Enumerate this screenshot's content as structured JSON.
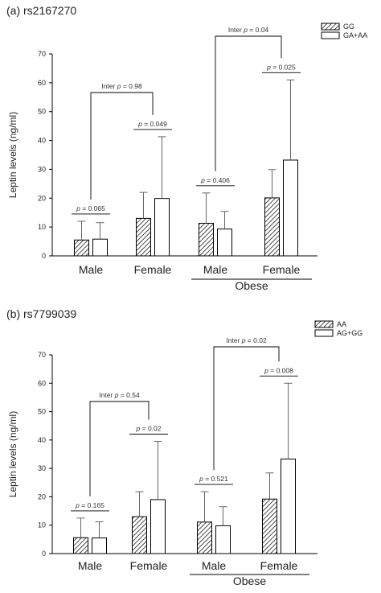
{
  "colors": {
    "bar_outline": "#000000",
    "hatched_fill": "hatch",
    "open_fill": "#ffffff",
    "error_bar": "#555555"
  },
  "chart_data": [
    {
      "type": "bar",
      "panel_title": "(a) rs2167270",
      "ylabel": "Leptin levels (ng/ml)",
      "xlabel": "",
      "ylim": [
        0,
        70
      ],
      "yticks": [
        0,
        10,
        20,
        30,
        40,
        50,
        60,
        70
      ],
      "categories": [
        "Male",
        "Female",
        "Male",
        "Female"
      ],
      "group_label": "Obese",
      "group_covers": [
        2,
        3
      ],
      "series": [
        {
          "name": "GG",
          "fill": "hatched",
          "values": [
            5.5,
            13,
            11.3,
            20.1
          ],
          "errors": [
            6.5,
            9,
            10.5,
            9.8
          ]
        },
        {
          "name": "GA+AA",
          "fill": "open",
          "values": [
            5.8,
            19.9,
            9.3,
            33.2
          ],
          "errors": [
            5.7,
            21.4,
            6.1,
            27.8
          ]
        }
      ],
      "pair_pvalues": [
        "0.065",
        "0.049",
        "0.406",
        "0.025"
      ],
      "inter_pvalues": [
        {
          "text": "0.98",
          "from": 0,
          "to": 1
        },
        {
          "text": "0.04",
          "from": 2,
          "to": 3
        }
      ],
      "legend_position": "top-right"
    },
    {
      "type": "bar",
      "panel_title": "(b) rs7799039",
      "ylabel": "Leptin levels (ng/ml)",
      "xlabel": "",
      "ylim": [
        0,
        70
      ],
      "yticks": [
        0,
        10,
        20,
        30,
        40,
        50,
        60,
        70
      ],
      "categories": [
        "Male",
        "Female",
        "Male",
        "Female"
      ],
      "group_label": "Obese",
      "group_covers": [
        2,
        3
      ],
      "series": [
        {
          "name": "AA",
          "fill": "hatched",
          "values": [
            5.6,
            13,
            11.1,
            19.2
          ],
          "errors": [
            6.9,
            8.8,
            10.7,
            9.2
          ]
        },
        {
          "name": "AG+GG",
          "fill": "open",
          "values": [
            5.5,
            19,
            9.8,
            33.3
          ],
          "errors": [
            5.7,
            20.5,
            6.7,
            26.7
          ]
        }
      ],
      "pair_pvalues": [
        "0.165",
        "0.02",
        "0.521",
        "0.008"
      ],
      "inter_pvalues": [
        {
          "text": "0.54",
          "from": 0,
          "to": 1
        },
        {
          "text": "0.02",
          "from": 2,
          "to": 3
        }
      ],
      "legend_position": "top-right"
    }
  ],
  "texts": {
    "p_symbol": "p",
    "p_eq": " = ",
    "inter_prefix": "Inter "
  }
}
